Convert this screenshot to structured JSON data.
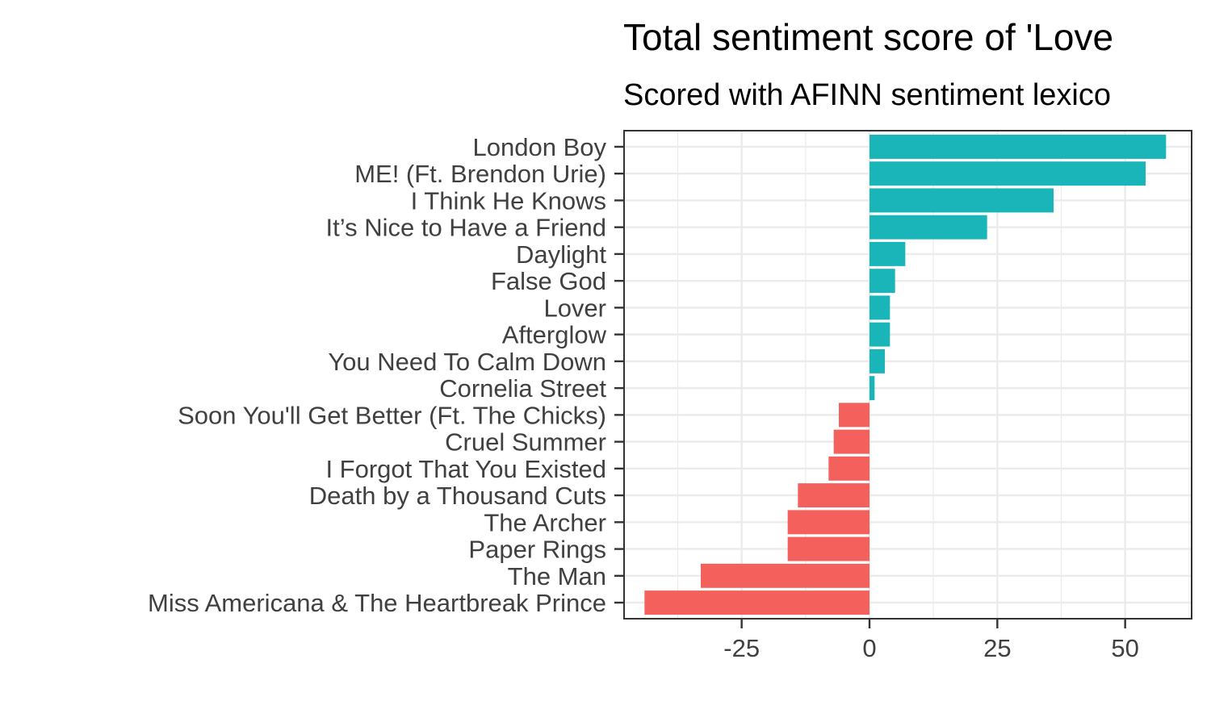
{
  "chart_data": {
    "type": "bar",
    "orientation": "horizontal",
    "title": "Total sentiment score of 'Love",
    "subtitle": "Scored with AFINN sentiment lexico",
    "xlabel": "",
    "ylabel": "",
    "xlim": [
      -48,
      63
    ],
    "x_ticks": [
      -25,
      0,
      25,
      50
    ],
    "x_tick_labels": [
      "-25",
      "0",
      "25",
      "50"
    ],
    "grid": true,
    "colors": {
      "positive": "#19B5B9",
      "negative": "#F4605C"
    },
    "categories": [
      "London Boy",
      "ME! (Ft. Brendon Urie)",
      "I Think He Knows",
      "It’s Nice to Have a Friend",
      "Daylight",
      "False God",
      "Lover",
      "Afterglow",
      "You Need To Calm Down",
      "Cornelia Street",
      "Soon You'll Get Better (Ft. The Chicks)",
      "Cruel Summer",
      "I Forgot That You Existed",
      "Death by a Thousand Cuts",
      "The Archer",
      "Paper Rings",
      "The Man",
      "Miss Americana & The Heartbreak Prince"
    ],
    "values": [
      58,
      54,
      36,
      23,
      7,
      5,
      4,
      4,
      3,
      1,
      -6,
      -7,
      -8,
      -14,
      -16,
      -16,
      -33,
      -44
    ]
  }
}
